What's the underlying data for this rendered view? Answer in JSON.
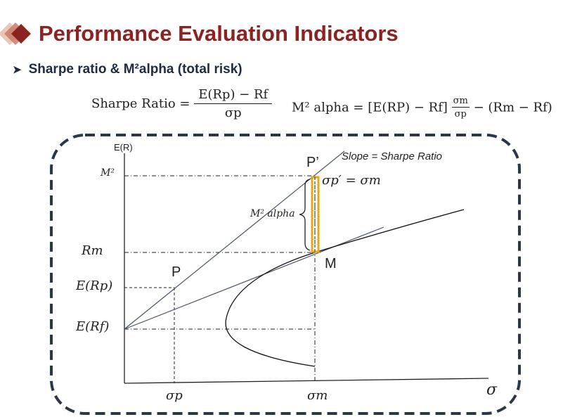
{
  "title": "Performance Evaluation Indicators",
  "bullet": "Sharpe ratio & M²alpha (total risk)",
  "formula_sharpe": {
    "lhs": "Sharpe Ratio =",
    "numerator": "E(Rp) − Rf",
    "denominator": "σp"
  },
  "formula_m2": {
    "lhs": "M² alpha =",
    "bracket": "[E(RP) − Rf]",
    "frac_num": "σm",
    "frac_den": "σp",
    "tail": "− (Rm − Rf)"
  },
  "diagram": {
    "y_axis_label": "E(R)",
    "x_axis_label": "σ",
    "slope_label": "Slope = Sharpe Ratio",
    "point_p_prime": "P’",
    "point_p": "P",
    "point_m": "M",
    "sigma_eq": "σp′ = σm",
    "m2_alpha_label": "M² alpha",
    "y_ticks": [
      "M²",
      "Rm",
      "E(Rp)",
      "E(Rf)"
    ],
    "x_ticks": [
      "σp",
      "σm"
    ],
    "highlight_color": "#e6a817",
    "frame_color": "#2b3648"
  }
}
